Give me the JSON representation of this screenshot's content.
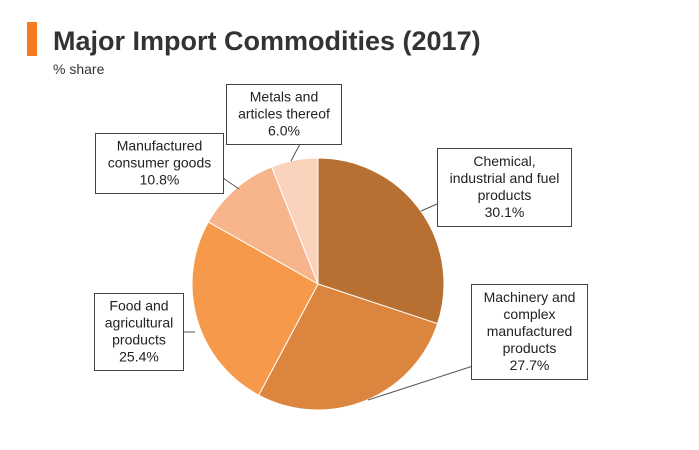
{
  "header": {
    "title": "Major Import Commodities (2017)",
    "subtitle": "% share",
    "accent_color": "#f47b20"
  },
  "chart_data": {
    "type": "pie",
    "title": "Major Import Commodities (2017)",
    "subtitle": "% share",
    "slices": [
      {
        "label": "Chemical, industrial and fuel products",
        "value": 30.1,
        "value_label": "30.1%",
        "color": "#b86f32",
        "lines": [
          "Chemical,",
          "industrial and fuel",
          "products",
          "30.1%"
        ]
      },
      {
        "label": "Machinery and complex manufactured products",
        "value": 27.7,
        "value_label": "27.7%",
        "color": "#dc853f",
        "lines": [
          "Machinery and",
          "complex",
          "manufactured",
          "products",
          "27.7%"
        ]
      },
      {
        "label": "Food and agricultural products",
        "value": 25.4,
        "value_label": "25.4%",
        "color": "#f6994a",
        "lines": [
          "Food and",
          "agricultural",
          "products",
          "25.4%"
        ]
      },
      {
        "label": "Manufactured consumer goods",
        "value": 10.8,
        "value_label": "10.8%",
        "color": "#f8b58c",
        "lines": [
          "Manufactured",
          "consumer goods",
          "10.8%"
        ]
      },
      {
        "label": "Metals and articles thereof",
        "value": 6.0,
        "value_label": "6.0%",
        "color": "#fbd2bc",
        "lines": [
          "Metals and",
          "articles thereof",
          "6.0%"
        ]
      }
    ]
  }
}
